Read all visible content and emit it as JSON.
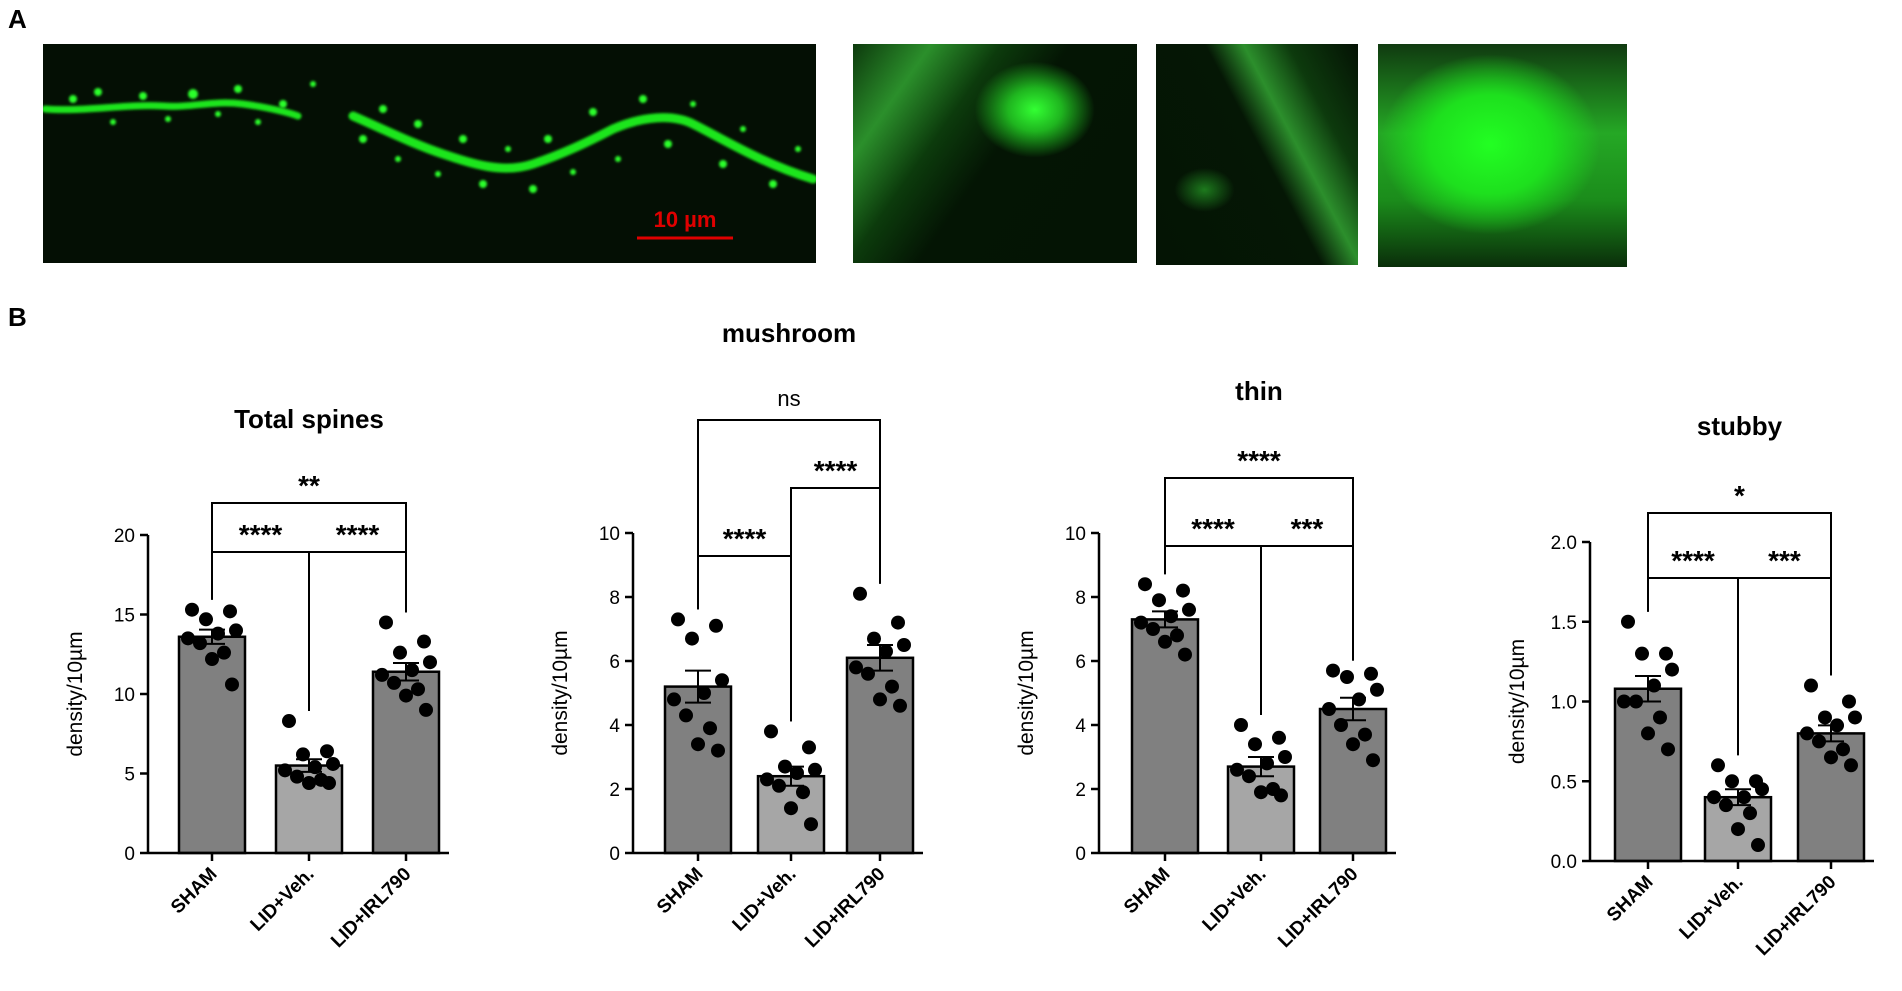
{
  "panels": {
    "a": "A",
    "b": "B"
  },
  "scale_bar": {
    "label": "10 µm",
    "color": "#e00000"
  },
  "colors": {
    "sham_bar": "#808080",
    "veh_bar": "#a6a6a6",
    "irl_bar": "#808080",
    "dots": "#000000",
    "micro_bg": "#041004",
    "micro_signal": "#22ff22"
  },
  "chart_data": [
    {
      "type": "bar",
      "title": "Total spines",
      "ylabel": "density/10µm",
      "categories": [
        "SHAM",
        "LID+Veh.",
        "LID+IRL790"
      ],
      "ylim": [
        0,
        20
      ],
      "yticks": [
        "0",
        "5",
        "10",
        "15",
        "20"
      ],
      "means": [
        13.6,
        5.5,
        11.4
      ],
      "sem": [
        0.45,
        0.4,
        0.55
      ],
      "points": [
        [
          15.3,
          15.2,
          14.7,
          14.0,
          13.8,
          13.5,
          13.2,
          12.6,
          12.2,
          10.6
        ],
        [
          8.3,
          6.4,
          6.2,
          5.6,
          5.4,
          5.2,
          4.8,
          4.6,
          4.4,
          4.4
        ],
        [
          14.5,
          13.3,
          12.6,
          12.0,
          11.5,
          11.2,
          10.7,
          10.3,
          9.9,
          9.0
        ]
      ],
      "comparisons": [
        {
          "from": 0,
          "to": 1,
          "label": "****"
        },
        {
          "from": 1,
          "to": 2,
          "label": "****"
        },
        {
          "from": 0,
          "to": 2,
          "label": "**"
        }
      ]
    },
    {
      "type": "bar",
      "title": "mushroom",
      "ylabel": "density/10µm",
      "categories": [
        "SHAM",
        "LID+Veh.",
        "LID+IRL790"
      ],
      "ylim": [
        0,
        10
      ],
      "yticks": [
        "0",
        "2",
        "4",
        "6",
        "8",
        "10"
      ],
      "means": [
        5.2,
        2.4,
        6.1
      ],
      "sem": [
        0.5,
        0.3,
        0.4
      ],
      "points": [
        [
          7.3,
          7.1,
          6.7,
          5.4,
          5.0,
          4.8,
          4.3,
          3.9,
          3.4,
          3.2
        ],
        [
          3.8,
          3.3,
          2.7,
          2.6,
          2.5,
          2.3,
          2.1,
          1.9,
          1.4,
          0.9
        ],
        [
          8.1,
          7.2,
          6.7,
          6.5,
          6.3,
          5.8,
          5.6,
          5.2,
          4.8,
          4.6
        ]
      ],
      "comparisons": [
        {
          "from": 0,
          "to": 1,
          "label": "****"
        },
        {
          "from": 1,
          "to": 2,
          "label": "****"
        },
        {
          "from": 0,
          "to": 2,
          "label": "ns"
        }
      ]
    },
    {
      "type": "bar",
      "title": "thin",
      "ylabel": "density/10µm",
      "categories": [
        "SHAM",
        "LID+Veh.",
        "LID+IRL790"
      ],
      "ylim": [
        0,
        10
      ],
      "yticks": [
        "0",
        "2",
        "4",
        "6",
        "8",
        "10"
      ],
      "means": [
        7.3,
        2.7,
        4.5
      ],
      "sem": [
        0.25,
        0.3,
        0.35
      ],
      "points": [
        [
          8.4,
          8.2,
          7.9,
          7.6,
          7.4,
          7.2,
          7.0,
          6.8,
          6.6,
          6.2
        ],
        [
          4.0,
          3.6,
          3.4,
          3.0,
          2.8,
          2.6,
          2.4,
          2.0,
          1.9,
          1.8
        ],
        [
          5.7,
          5.6,
          5.5,
          5.1,
          4.8,
          4.5,
          4.0,
          3.7,
          3.4,
          2.9
        ]
      ],
      "comparisons": [
        {
          "from": 0,
          "to": 1,
          "label": "****"
        },
        {
          "from": 1,
          "to": 2,
          "label": "***"
        },
        {
          "from": 0,
          "to": 2,
          "label": "****"
        }
      ]
    },
    {
      "type": "bar",
      "title": "stubby",
      "ylabel": "density/10µm",
      "categories": [
        "SHAM",
        "LID+Veh.",
        "LID+IRL790"
      ],
      "ylim": [
        0,
        2.0
      ],
      "yticks": [
        "0.0",
        "0.5",
        "1.0",
        "1.5",
        "2.0"
      ],
      "means": [
        1.08,
        0.4,
        0.8
      ],
      "sem": [
        0.08,
        0.05,
        0.05
      ],
      "points": [
        [
          1.5,
          1.3,
          1.3,
          1.2,
          1.1,
          1.0,
          1.0,
          0.9,
          0.8,
          0.7
        ],
        [
          0.6,
          0.5,
          0.5,
          0.45,
          0.4,
          0.4,
          0.35,
          0.3,
          0.2,
          0.1
        ],
        [
          1.1,
          1.0,
          0.9,
          0.9,
          0.85,
          0.8,
          0.75,
          0.7,
          0.65,
          0.6
        ]
      ],
      "comparisons": [
        {
          "from": 0,
          "to": 1,
          "label": "****"
        },
        {
          "from": 1,
          "to": 2,
          "label": "***"
        },
        {
          "from": 0,
          "to": 2,
          "label": "*"
        }
      ]
    }
  ]
}
